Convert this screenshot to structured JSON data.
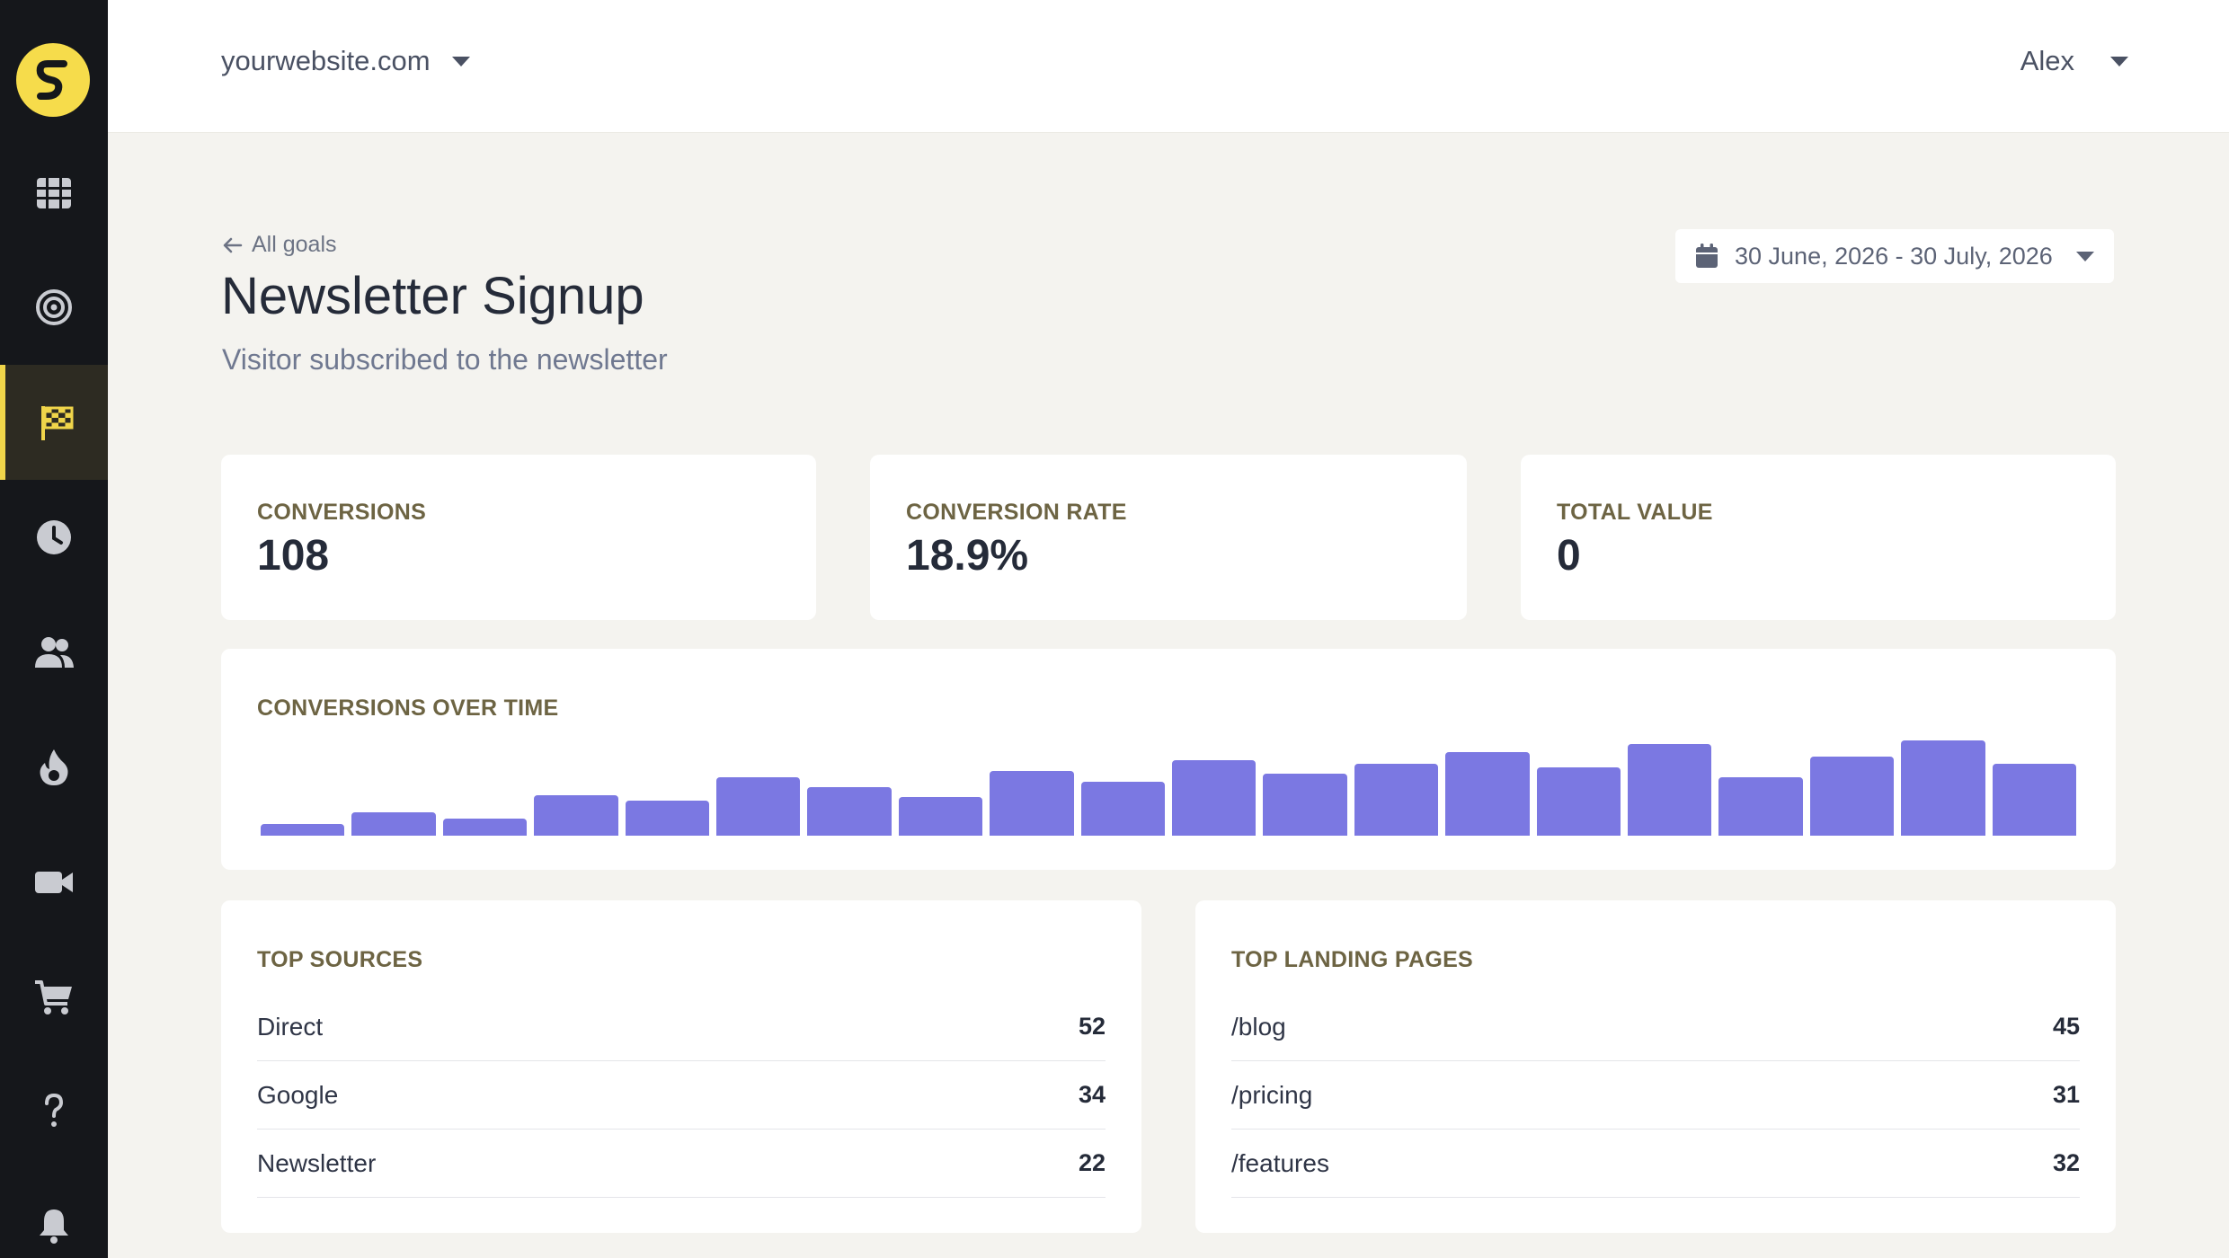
{
  "header": {
    "site": "yourwebsite.com",
    "user": "Alex"
  },
  "sidebar": {
    "items": [
      {
        "icon": "grid-icon"
      },
      {
        "icon": "target-icon"
      },
      {
        "icon": "checkered-flag-icon",
        "active": true
      },
      {
        "icon": "clock-icon"
      },
      {
        "icon": "users-icon"
      },
      {
        "icon": "flame-icon"
      },
      {
        "icon": "video-icon"
      },
      {
        "icon": "cart-icon"
      },
      {
        "icon": "help-icon"
      },
      {
        "icon": "bell-icon"
      }
    ]
  },
  "page": {
    "back_label": "All goals",
    "title": "Newsletter Signup",
    "subtitle": "Visitor subscribed to the newsletter",
    "date_range": "30 June, 2026 - 30 July, 2026"
  },
  "stats": [
    {
      "label": "CONVERSIONS",
      "value": "108"
    },
    {
      "label": "CONVERSION RATE",
      "value": "18.9%"
    },
    {
      "label": "TOTAL VALUE",
      "value": "0"
    }
  ],
  "chart_data": {
    "type": "bar",
    "title": "CONVERSIONS OVER TIME",
    "values": [
      1,
      2,
      1.5,
      3.5,
      3,
      5,
      4.2,
      3.3,
      5.6,
      4.6,
      6.5,
      5.3,
      6.2,
      7.2,
      5.9,
      7.9,
      5,
      6.8,
      8.2,
      6.2
    ],
    "ylim": [
      0,
      8.5
    ],
    "color": "#7b78e2"
  },
  "top_sources": {
    "title": "TOP SOURCES",
    "rows": [
      {
        "name": "Direct",
        "count": "52"
      },
      {
        "name": "Google",
        "count": "34"
      },
      {
        "name": "Newsletter",
        "count": "22"
      }
    ]
  },
  "top_landing_pages": {
    "title": "TOP LANDING PAGES",
    "rows": [
      {
        "name": "/blog",
        "count": "45"
      },
      {
        "name": "/pricing",
        "count": "31"
      },
      {
        "name": "/features",
        "count": "32"
      }
    ]
  }
}
